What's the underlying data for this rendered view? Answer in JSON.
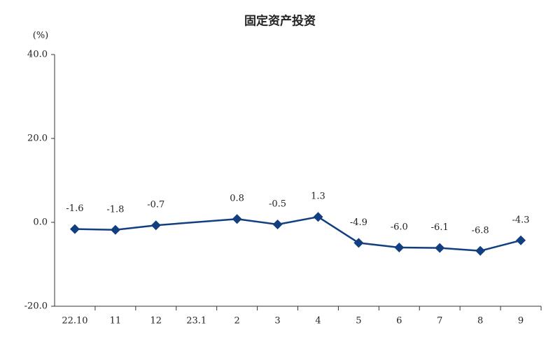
{
  "chart_data": {
    "type": "line",
    "title": "固定资产投资",
    "y_label": "(%)",
    "categories": [
      "22.10",
      "11",
      "12",
      "23.1",
      "2",
      "3",
      "4",
      "5",
      "6",
      "7",
      "8",
      "9"
    ],
    "series": [
      {
        "color": "#123f7f",
        "values": [
          -1.6,
          -1.8,
          -0.7,
          null,
          0.8,
          -0.5,
          1.3,
          -4.9,
          -6.0,
          -6.1,
          -6.8,
          -4.3
        ],
        "value_labels": [
          "-1.6",
          "-1.8",
          "-0.7",
          null,
          "0.8",
          "-0.5",
          "1.3",
          "-4.9",
          "-6.0",
          "-6.1",
          "-6.8",
          "-4.3"
        ]
      }
    ],
    "ylim": [
      -20,
      40
    ],
    "yticks": [
      {
        "value": -20,
        "label": "-20.0"
      },
      {
        "value": 0,
        "label": "0.0"
      },
      {
        "value": 20,
        "label": "20.0"
      },
      {
        "value": 40,
        "label": "40.0"
      }
    ]
  }
}
